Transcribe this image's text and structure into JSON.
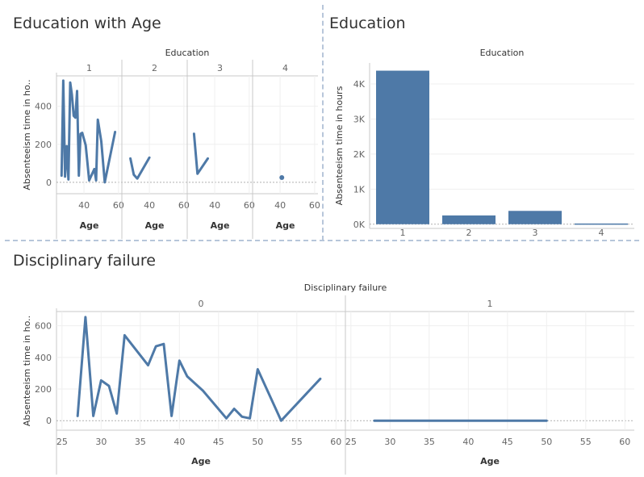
{
  "panels": {
    "p1": {
      "title": "Education with Age"
    },
    "p2": {
      "title": "Education"
    },
    "p3": {
      "title": "Disciplinary failure"
    }
  },
  "chart_data": [
    {
      "type": "line",
      "title": "Education with Age",
      "facet_label": "Education",
      "xlabel": "Age",
      "ylabel": "Absenteeism time in ho..",
      "ylim": [
        -60,
        560
      ],
      "yticks": [
        0,
        200,
        400
      ],
      "xlim": [
        25,
        61
      ],
      "xticks": [
        40,
        60
      ],
      "grid": true,
      "facets": [
        {
          "label": "1",
          "points": [
            [
              27,
              35
            ],
            [
              28,
              535
            ],
            [
              29,
              30
            ],
            [
              30,
              190
            ],
            [
              31,
              15
            ],
            [
              32,
              525
            ],
            [
              33,
              460
            ],
            [
              34,
              350
            ],
            [
              35,
              340
            ],
            [
              36,
              480
            ],
            [
              37,
              35
            ],
            [
              38,
              255
            ],
            [
              39,
              260
            ],
            [
              41,
              195
            ],
            [
              43,
              10
            ],
            [
              46,
              70
            ],
            [
              47,
              10
            ],
            [
              48,
              330
            ],
            [
              50,
              215
            ],
            [
              52,
              0
            ],
            [
              58,
              265
            ]
          ]
        },
        {
          "label": "2",
          "points": [
            [
              29,
              125
            ],
            [
              31,
              40
            ],
            [
              33,
              20
            ],
            [
              40,
              130
            ]
          ]
        },
        {
          "label": "3",
          "points": [
            [
              28,
              255
            ],
            [
              30,
              45
            ],
            [
              36,
              125
            ]
          ]
        },
        {
          "label": "4",
          "points": [
            [
              41,
              25
            ]
          ],
          "marker": "point"
        }
      ]
    },
    {
      "type": "bar",
      "title": "Education",
      "xlabel": "Education",
      "ylabel": "Absenteeism time in hours",
      "categories": [
        "1",
        "2",
        "3",
        "4"
      ],
      "values": [
        4380,
        250,
        380,
        20
      ],
      "yticks": [
        0,
        1000,
        2000,
        3000,
        4000
      ],
      "ytick_labels": [
        "0K",
        "1K",
        "2K",
        "3K",
        "4K"
      ],
      "ylim": [
        -120,
        4600
      ],
      "grid": true
    },
    {
      "type": "line",
      "title": "Disciplinary failure",
      "facet_label": "Disciplinary failure",
      "xlabel": "Age",
      "ylabel": "Absenteeism time in ho..",
      "ylim": [
        -60,
        690
      ],
      "yticks": [
        0,
        200,
        400,
        600
      ],
      "xlim": [
        24.5,
        61
      ],
      "xticks": [
        25,
        30,
        35,
        40,
        45,
        50,
        55,
        60
      ],
      "grid": true,
      "facets": [
        {
          "label": "0",
          "points": [
            [
              27,
              30
            ],
            [
              28,
              655
            ],
            [
              29,
              30
            ],
            [
              30,
              255
            ],
            [
              31,
              220
            ],
            [
              32,
              45
            ],
            [
              33,
              540
            ],
            [
              36,
              350
            ],
            [
              37,
              470
            ],
            [
              38,
              485
            ],
            [
              39,
              30
            ],
            [
              40,
              380
            ],
            [
              41,
              280
            ],
            [
              43,
              190
            ],
            [
              46,
              15
            ],
            [
              47,
              75
            ],
            [
              48,
              25
            ],
            [
              49,
              15
            ],
            [
              50,
              325
            ],
            [
              53,
              0
            ],
            [
              58,
              265
            ]
          ]
        },
        {
          "label": "1",
          "points": [
            [
              28,
              0
            ],
            [
              50,
              0
            ]
          ]
        }
      ]
    }
  ],
  "colors": {
    "mark": "#4e79a7",
    "axis": "#c8c8c8",
    "grid": "#efefef",
    "zero": "#b0b0b0",
    "text": "#333333",
    "tick": "#666666"
  }
}
